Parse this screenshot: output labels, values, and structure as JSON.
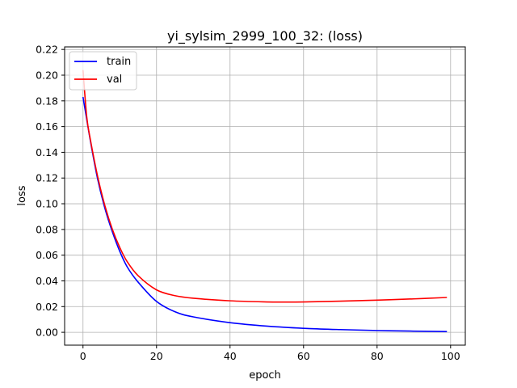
{
  "chart_data": {
    "type": "line",
    "title": "yi_sylsim_2999_100_32: (loss)",
    "xlabel": "epoch",
    "ylabel": "loss",
    "xlim": [
      -5,
      104
    ],
    "ylim": [
      -0.01,
      0.222
    ],
    "x_ticks": [
      0,
      20,
      40,
      60,
      80,
      100
    ],
    "y_ticks": [
      0.0,
      0.02,
      0.04,
      0.06,
      0.08,
      0.1,
      0.12,
      0.14,
      0.16,
      0.18,
      0.2,
      0.22
    ],
    "grid": true,
    "legend_position": "upper left",
    "series": [
      {
        "name": "train",
        "color": "#0000ff",
        "x": [
          0,
          2,
          4,
          6,
          8,
          10,
          12,
          15,
          20,
          25,
          30,
          40,
          50,
          60,
          70,
          80,
          90,
          99
        ],
        "values": [
          0.183,
          0.149,
          0.119,
          0.096,
          0.078,
          0.063,
          0.051,
          0.039,
          0.024,
          0.016,
          0.012,
          0.0075,
          0.0048,
          0.0031,
          0.0021,
          0.0014,
          0.0009,
          0.0006
        ]
      },
      {
        "name": "val",
        "color": "#ff0000",
        "x": [
          0,
          1,
          2,
          4,
          6,
          8,
          10,
          12,
          15,
          20,
          25,
          30,
          40,
          50,
          55,
          60,
          70,
          80,
          90,
          99
        ],
        "values": [
          0.204,
          0.168,
          0.15,
          0.121,
          0.098,
          0.08,
          0.066,
          0.055,
          0.044,
          0.033,
          0.0285,
          0.0265,
          0.0245,
          0.0236,
          0.0235,
          0.0236,
          0.0242,
          0.025,
          0.026,
          0.0271
        ]
      }
    ]
  }
}
